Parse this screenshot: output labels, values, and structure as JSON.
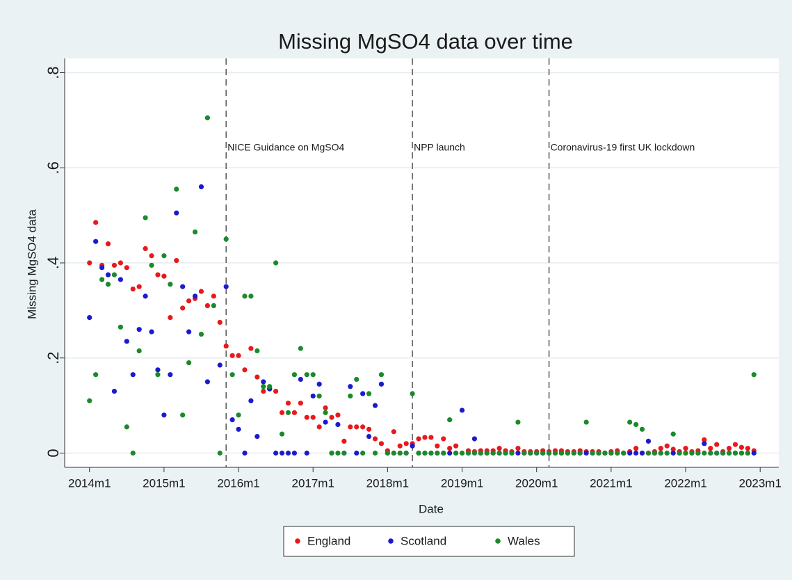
{
  "chart_data": {
    "type": "scatter",
    "title": "Missing MgSO4 data over time",
    "x_label": "Date",
    "y_label": "Missing MgSO4 data",
    "x": [
      648,
      649,
      650,
      651,
      652,
      653,
      654,
      655,
      656,
      657,
      658,
      659,
      660,
      661,
      662,
      663,
      664,
      665,
      666,
      667,
      668,
      669,
      670,
      671,
      672,
      673,
      674,
      675,
      676,
      677,
      678,
      679,
      680,
      681,
      682,
      683,
      684,
      685,
      686,
      687,
      688,
      689,
      690,
      691,
      692,
      693,
      694,
      695,
      696,
      697,
      698,
      699,
      700,
      701,
      702,
      703,
      704,
      705,
      706,
      707,
      708,
      709,
      710,
      711,
      712,
      713,
      714,
      715,
      716,
      717,
      718,
      719,
      720,
      721,
      722,
      723,
      724,
      725,
      726,
      727,
      728,
      729,
      730,
      731,
      732,
      733,
      734,
      735,
      736,
      737,
      738,
      739,
      740,
      741,
      742,
      743,
      744,
      745,
      746,
      747,
      748,
      749,
      750,
      751,
      752,
      753,
      754,
      755
    ],
    "series": [
      {
        "name": "England",
        "color": "#e8191c",
        "values": [
          0.4,
          0.485,
          0.395,
          0.44,
          0.395,
          0.4,
          0.39,
          0.345,
          0.35,
          0.43,
          0.415,
          0.375,
          0.372,
          0.285,
          0.405,
          0.305,
          0.32,
          0.325,
          0.34,
          0.31,
          0.33,
          0.275,
          0.225,
          0.205,
          0.205,
          0.175,
          0.22,
          0.16,
          0.13,
          0.135,
          0.13,
          0.085,
          0.105,
          0.085,
          0.105,
          0.075,
          0.075,
          0.055,
          0.095,
          0.075,
          0.08,
          0.025,
          0.055,
          0.055,
          0.055,
          0.05,
          0.03,
          0.02,
          0.005,
          0.045,
          0.015,
          0.02,
          0.02,
          0.03,
          0.033,
          0.033,
          0.015,
          0.03,
          0.01,
          0.015,
          0,
          0.005,
          0.003,
          0.005,
          0.005,
          0.005,
          0.01,
          0.005,
          0.003,
          0.01,
          0.003,
          0.003,
          0.003,
          0.005,
          0.003,
          0.005,
          0.005,
          0.003,
          0.003,
          0.005,
          0.003,
          0.003,
          0.003,
          0,
          0.003,
          0.005,
          0,
          0.003,
          0.01,
          0,
          0,
          0.003,
          0.01,
          0.015,
          0.008,
          0.003,
          0.01,
          0.003,
          0.005,
          0.028,
          0.01,
          0.018,
          0.003,
          0.01,
          0.018,
          0.012,
          0.01,
          0.005
        ]
      },
      {
        "name": "Scotland",
        "color": "#1a1ad0",
        "values": [
          0.285,
          0.445,
          0.39,
          0.375,
          0.13,
          0.365,
          0.235,
          0.165,
          0.26,
          0.33,
          0.255,
          0.175,
          0.08,
          0.165,
          0.505,
          0.35,
          0.255,
          0.33,
          0.56,
          0.15,
          null,
          0.185,
          0.35,
          0.07,
          0.05,
          0,
          0.11,
          0.035,
          0.15,
          0.135,
          0,
          0,
          0,
          0,
          0.155,
          0,
          0.12,
          0.145,
          0.065,
          0,
          0.06,
          0,
          0.14,
          0,
          0.125,
          0.035,
          0.1,
          0.145,
          0,
          0,
          0,
          0,
          0.015,
          0,
          0,
          0,
          0,
          0,
          0,
          0,
          0.09,
          0,
          0.03,
          0,
          0,
          0,
          0,
          0,
          0,
          0,
          0,
          0,
          0,
          0,
          0,
          0,
          0,
          0,
          0,
          0,
          0,
          0,
          0,
          0,
          0,
          0,
          0,
          0,
          0,
          0,
          0.025,
          0,
          0,
          0,
          0,
          0,
          0,
          0,
          0,
          0.02,
          0,
          0,
          0,
          0,
          0,
          0,
          0,
          0
        ]
      },
      {
        "name": "Wales",
        "color": "#1a8a2a",
        "values": [
          0.11,
          0.165,
          0.365,
          0.355,
          0.375,
          0.265,
          0.055,
          0,
          0.215,
          0.495,
          0.395,
          0.165,
          0.415,
          0.355,
          0.555,
          0.08,
          0.19,
          0.465,
          0.25,
          0.705,
          0.31,
          0,
          0.45,
          0.165,
          0.08,
          0.33,
          0.33,
          0.215,
          0.14,
          0.14,
          0.4,
          0.04,
          0.085,
          0.165,
          0.22,
          0.165,
          0.165,
          0.12,
          0.085,
          0,
          0,
          0,
          0.12,
          0.155,
          0,
          0.125,
          0,
          0.165,
          0,
          0,
          0,
          0,
          0.125,
          0,
          0,
          0,
          0,
          0,
          0.07,
          0,
          0,
          0,
          0,
          0,
          0,
          0,
          0,
          0,
          0,
          0.065,
          0,
          0,
          0,
          0,
          0,
          0,
          0,
          0,
          0,
          0,
          0.065,
          0,
          0,
          0,
          0,
          0,
          0,
          0.065,
          0.06,
          0.05,
          0,
          0,
          0,
          0,
          0.04,
          0,
          0,
          0,
          0,
          0,
          0,
          0,
          0,
          0,
          0,
          0,
          0,
          0.165
        ]
      }
    ],
    "xlim": [
      644,
      759
    ],
    "ylim": [
      -0.03,
      0.83
    ],
    "xticks": [
      {
        "value": 648,
        "label": "2014m1"
      },
      {
        "value": 660,
        "label": "2015m1"
      },
      {
        "value": 672,
        "label": "2016m1"
      },
      {
        "value": 684,
        "label": "2017m1"
      },
      {
        "value": 696,
        "label": "2018m1"
      },
      {
        "value": 708,
        "label": "2019m1"
      },
      {
        "value": 720,
        "label": "2020m1"
      },
      {
        "value": 732,
        "label": "2021m1"
      },
      {
        "value": 744,
        "label": "2022m1"
      },
      {
        "value": 756,
        "label": "2023m1"
      }
    ],
    "yticks": [
      0,
      {
        "value": 0.2,
        "label": ".2"
      },
      {
        "value": 0.4,
        "label": ".4"
      },
      {
        "value": 0.6,
        "label": ".6"
      },
      {
        "value": 0.8,
        "label": ".8"
      }
    ],
    "grid": true,
    "legend": "bottom",
    "vlines": [
      {
        "x": 670,
        "label": "NICE Guidance on MgSO4"
      },
      {
        "x": 700,
        "label": "NPP launch"
      },
      {
        "x": 722,
        "label": "Coronavirus-19 first UK lockdown"
      }
    ]
  }
}
